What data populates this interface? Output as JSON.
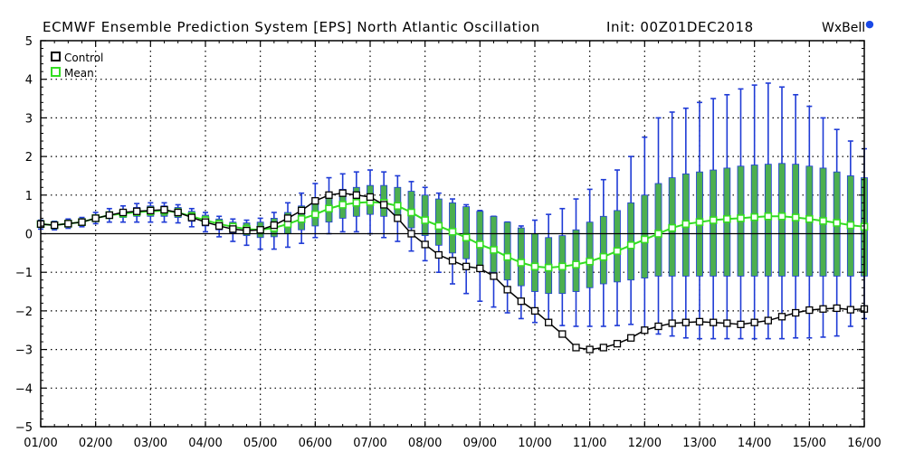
{
  "header": {
    "title": "ECMWF Ensemble Prediction System [EPS] North Atlantic Oscillation",
    "init": "Init: 00Z01DEC2018",
    "brand": "WxBell"
  },
  "colors": {
    "control": "#000000",
    "mean": "#33dd22",
    "box_fill": "#4caf50",
    "whisker": "#1f3bd6"
  },
  "chart_data": {
    "type": "line",
    "ylim": [
      -5,
      5
    ],
    "xlim": [
      1,
      16
    ],
    "yticks": [
      "5",
      "4",
      "3",
      "2",
      "1",
      "0",
      "−1",
      "−2",
      "−3",
      "−4",
      "−5"
    ],
    "xticks": [
      "01/00",
      "02/00",
      "03/00",
      "04/00",
      "05/00",
      "06/00",
      "07/00",
      "08/00",
      "09/00",
      "10/00",
      "11/00",
      "12/00",
      "13/00",
      "14/00",
      "15/00",
      "16/00"
    ],
    "grid": true,
    "legend": "top-left",
    "x": [
      1,
      1.25,
      1.5,
      1.75,
      2,
      2.25,
      2.5,
      2.75,
      3,
      3.25,
      3.5,
      3.75,
      4,
      4.25,
      4.5,
      4.75,
      5,
      5.25,
      5.5,
      5.75,
      6,
      6.25,
      6.5,
      6.75,
      7,
      7.25,
      7.5,
      7.75,
      8,
      8.25,
      8.5,
      8.75,
      9,
      9.25,
      9.5,
      9.75,
      10,
      10.25,
      10.5,
      10.75,
      11,
      11.25,
      11.5,
      11.75,
      12,
      12.25,
      12.5,
      12.75,
      13,
      13.25,
      13.5,
      13.75,
      14,
      14.25,
      14.5,
      14.75,
      15,
      15.25,
      15.5,
      15.75,
      16
    ],
    "series": [
      {
        "name": "Control",
        "values": [
          0.25,
          0.22,
          0.26,
          0.3,
          0.4,
          0.48,
          0.55,
          0.58,
          0.6,
          0.62,
          0.55,
          0.42,
          0.3,
          0.2,
          0.12,
          0.08,
          0.1,
          0.22,
          0.4,
          0.6,
          0.85,
          1.0,
          1.05,
          1.0,
          0.95,
          0.75,
          0.4,
          0.0,
          -0.28,
          -0.55,
          -0.7,
          -0.85,
          -0.9,
          -1.1,
          -1.45,
          -1.75,
          -2.0,
          -2.3,
          -2.6,
          -2.95,
          -3.0,
          -2.95,
          -2.85,
          -2.7,
          -2.5,
          -2.4,
          -2.32,
          -2.3,
          -2.28,
          -2.3,
          -2.32,
          -2.35,
          -2.3,
          -2.25,
          -2.15,
          -2.05,
          -1.98,
          -1.95,
          -1.93,
          -1.97,
          -1.95
        ]
      },
      {
        "name": "Mean",
        "values": [
          0.25,
          0.22,
          0.26,
          0.3,
          0.4,
          0.48,
          0.52,
          0.56,
          0.58,
          0.6,
          0.55,
          0.45,
          0.35,
          0.25,
          0.18,
          0.12,
          0.1,
          0.15,
          0.25,
          0.38,
          0.5,
          0.65,
          0.75,
          0.8,
          0.82,
          0.8,
          0.72,
          0.55,
          0.35,
          0.2,
          0.05,
          -0.1,
          -0.28,
          -0.42,
          -0.6,
          -0.75,
          -0.85,
          -0.88,
          -0.85,
          -0.8,
          -0.72,
          -0.6,
          -0.45,
          -0.3,
          -0.15,
          0.0,
          0.15,
          0.25,
          0.3,
          0.35,
          0.38,
          0.4,
          0.43,
          0.45,
          0.45,
          0.42,
          0.38,
          0.33,
          0.28,
          0.22,
          0.18
        ]
      }
    ],
    "box_upper": [
      0.3,
      0.28,
      0.3,
      0.35,
      0.45,
      0.55,
      0.62,
      0.68,
      0.72,
      0.72,
      0.68,
      0.58,
      0.48,
      0.38,
      0.3,
      0.28,
      0.3,
      0.4,
      0.55,
      0.72,
      0.9,
      1.05,
      1.15,
      1.2,
      1.25,
      1.25,
      1.2,
      1.1,
      1.0,
      0.9,
      0.8,
      0.7,
      0.58,
      0.45,
      0.3,
      0.15,
      0.0,
      -0.1,
      -0.05,
      0.1,
      0.3,
      0.45,
      0.6,
      0.8,
      1.0,
      1.3,
      1.45,
      1.55,
      1.6,
      1.65,
      1.7,
      1.75,
      1.78,
      1.8,
      1.82,
      1.8,
      1.75,
      1.7,
      1.6,
      1.5,
      1.45
    ],
    "box_lower": [
      0.18,
      0.16,
      0.2,
      0.24,
      0.33,
      0.4,
      0.42,
      0.45,
      0.45,
      0.45,
      0.42,
      0.32,
      0.2,
      0.1,
      0.02,
      -0.05,
      -0.1,
      -0.08,
      0.0,
      0.1,
      0.2,
      0.3,
      0.4,
      0.45,
      0.5,
      0.45,
      0.35,
      0.15,
      -0.05,
      -0.3,
      -0.5,
      -0.65,
      -0.85,
      -1.0,
      -1.2,
      -1.35,
      -1.5,
      -1.55,
      -1.55,
      -1.5,
      -1.4,
      -1.3,
      -1.25,
      -1.2,
      -1.15,
      -1.1,
      -1.1,
      -1.1,
      -1.1,
      -1.1,
      -1.1,
      -1.1,
      -1.1,
      -1.1,
      -1.1,
      -1.1,
      -1.1,
      -1.1,
      -1.1,
      -1.1,
      -1.1
    ],
    "whisker_upper": [
      0.35,
      0.32,
      0.38,
      0.42,
      0.55,
      0.65,
      0.72,
      0.78,
      0.8,
      0.8,
      0.75,
      0.65,
      0.55,
      0.45,
      0.38,
      0.35,
      0.4,
      0.55,
      0.8,
      1.05,
      1.3,
      1.45,
      1.55,
      1.6,
      1.65,
      1.6,
      1.5,
      1.35,
      1.2,
      1.05,
      0.9,
      0.75,
      0.6,
      0.45,
      0.3,
      0.2,
      0.35,
      0.5,
      0.65,
      0.9,
      1.15,
      1.4,
      1.65,
      2.0,
      2.5,
      3.0,
      3.15,
      3.25,
      3.4,
      3.5,
      3.6,
      3.75,
      3.85,
      3.9,
      3.8,
      3.6,
      3.3,
      3.0,
      2.7,
      2.4,
      2.2
    ],
    "whisker_lower": [
      0.12,
      0.1,
      0.14,
      0.18,
      0.26,
      0.3,
      0.3,
      0.3,
      0.3,
      0.3,
      0.28,
      0.18,
      0.05,
      -0.08,
      -0.2,
      -0.3,
      -0.4,
      -0.4,
      -0.35,
      -0.25,
      -0.1,
      0.0,
      0.05,
      0.05,
      0.0,
      -0.1,
      -0.2,
      -0.45,
      -0.7,
      -1.0,
      -1.3,
      -1.55,
      -1.75,
      -1.9,
      -2.05,
      -2.2,
      -2.3,
      -2.35,
      -2.38,
      -2.4,
      -2.4,
      -2.4,
      -2.38,
      -2.35,
      -2.5,
      -2.6,
      -2.65,
      -2.7,
      -2.72,
      -2.72,
      -2.72,
      -2.72,
      -2.72,
      -2.72,
      -2.72,
      -2.7,
      -2.7,
      -2.68,
      -2.65,
      -2.4,
      -2.2
    ]
  }
}
